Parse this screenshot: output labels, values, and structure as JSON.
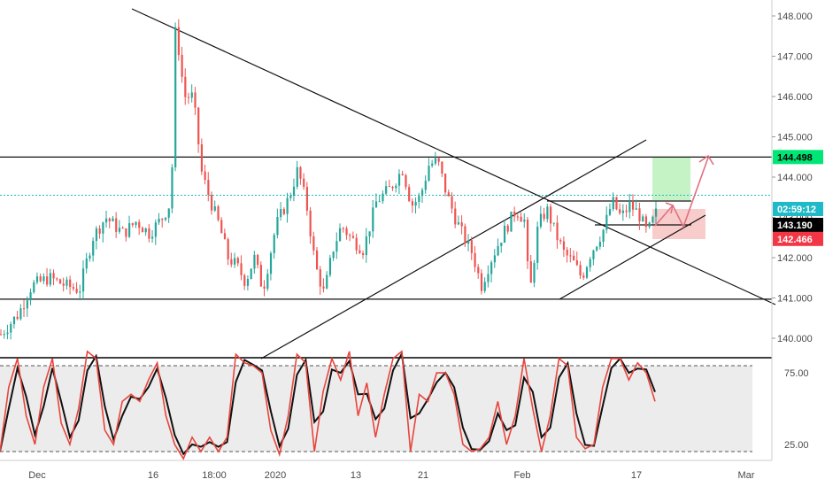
{
  "chart_data": [
    {
      "type": "candlestick",
      "x_ticks": [
        "Dec",
        "16",
        "18:00",
        "2020",
        "13",
        "21",
        "Feb",
        "17",
        "Mar"
      ],
      "y_ticks": [
        "148.000",
        "147.000",
        "146.000",
        "145.000",
        "144.000",
        "143.000",
        "142.000",
        "141.000",
        "140.000"
      ],
      "ylim": [
        139.55,
        148.4
      ],
      "price_tags": [
        {
          "label": "144.498",
          "value": 144.498,
          "bg": "#00e676",
          "fg": "#000000"
        },
        {
          "label": "02:59:12",
          "value": 143.55,
          "bg": "#1fbac8",
          "fg": "#ffffff"
        },
        {
          "label": "143.190",
          "value": 143.19,
          "bg": "#000000",
          "fg": "#ffffff"
        },
        {
          "label": "142.466",
          "value": 142.466,
          "bg": "#f23645",
          "fg": "#ffffff"
        }
      ],
      "horizontal_levels": [
        144.498,
        140.97
      ],
      "current_price_line": 143.55,
      "bar_count": 200,
      "approx_path": [
        [
          0,
          140.1
        ],
        [
          8,
          140.6
        ],
        [
          14,
          141.3
        ],
        [
          22,
          141.5
        ],
        [
          30,
          141.3
        ],
        [
          36,
          141.2
        ],
        [
          42,
          142.5
        ],
        [
          48,
          143.0
        ],
        [
          56,
          142.6
        ],
        [
          62,
          142.9
        ],
        [
          68,
          142.6
        ],
        [
          74,
          143.0
        ],
        [
          78,
          143.4
        ],
        [
          80,
          147.8
        ],
        [
          82,
          146.9
        ],
        [
          84,
          146.0
        ],
        [
          88,
          146.0
        ],
        [
          92,
          144.1
        ],
        [
          96,
          143.4
        ],
        [
          100,
          142.8
        ],
        [
          104,
          142.0
        ],
        [
          108,
          141.8
        ],
        [
          112,
          141.4
        ],
        [
          116,
          142.0
        ],
        [
          120,
          141.2
        ],
        [
          126,
          142.8
        ],
        [
          132,
          143.5
        ],
        [
          136,
          144.2
        ],
        [
          140,
          143.3
        ],
        [
          144,
          141.8
        ],
        [
          148,
          141.1
        ],
        [
          152,
          142.2
        ],
        [
          156,
          142.8
        ],
        [
          160,
          142.5
        ],
        [
          166,
          142.2
        ],
        [
          172,
          143.4
        ],
        [
          178,
          143.7
        ],
        [
          184,
          144.2
        ],
        [
          188,
          143.3
        ],
        [
          192,
          143.5
        ],
        [
          196,
          144.3
        ],
        [
          200,
          144.4
        ],
        [
          204,
          143.6
        ],
        [
          208,
          143.0
        ],
        [
          212,
          142.5
        ],
        [
          216,
          142.1
        ],
        [
          220,
          141.3
        ],
        [
          224,
          141.9
        ],
        [
          230,
          142.6
        ],
        [
          236,
          143.2
        ],
        [
          240,
          142.9
        ],
        [
          242,
          141.0
        ],
        [
          246,
          142.8
        ],
        [
          250,
          143.2
        ],
        [
          254,
          142.6
        ],
        [
          258,
          142.1
        ],
        [
          262,
          141.9
        ],
        [
          266,
          141.5
        ],
        [
          270,
          142.1
        ],
        [
          276,
          142.7
        ],
        [
          280,
          143.4
        ],
        [
          284,
          143.0
        ],
        [
          288,
          143.3
        ],
        [
          292,
          143.1
        ],
        [
          296,
          142.6
        ],
        [
          300,
          143.1
        ]
      ],
      "approx_path_x_unit": "chart-relative bar index (0 = first visible bar, 300 = last visible bar)",
      "stochastic": {
        "y_ticks": [
          "75.00",
          "25.00"
        ],
        "bands": [
          80,
          20
        ],
        "ylim": [
          0,
          100
        ],
        "k": [
          [
            0,
            20
          ],
          [
            4,
            65
          ],
          [
            8,
            85
          ],
          [
            12,
            45
          ],
          [
            16,
            25
          ],
          [
            20,
            65
          ],
          [
            24,
            85
          ],
          [
            28,
            40
          ],
          [
            32,
            25
          ],
          [
            36,
            50
          ],
          [
            40,
            90
          ],
          [
            44,
            85
          ],
          [
            48,
            35
          ],
          [
            52,
            25
          ],
          [
            56,
            55
          ],
          [
            60,
            60
          ],
          [
            64,
            55
          ],
          [
            68,
            70
          ],
          [
            72,
            82
          ],
          [
            76,
            45
          ],
          [
            80,
            25
          ],
          [
            84,
            15
          ],
          [
            88,
            30
          ],
          [
            92,
            20
          ],
          [
            96,
            30
          ],
          [
            100,
            20
          ],
          [
            104,
            30
          ],
          [
            108,
            88
          ],
          [
            112,
            82
          ],
          [
            116,
            80
          ],
          [
            120,
            75
          ],
          [
            124,
            35
          ],
          [
            128,
            18
          ],
          [
            132,
            45
          ],
          [
            136,
            88
          ],
          [
            140,
            82
          ],
          [
            144,
            20
          ],
          [
            148,
            62
          ],
          [
            152,
            85
          ],
          [
            156,
            70
          ],
          [
            160,
            90
          ],
          [
            164,
            45
          ],
          [
            168,
            68
          ],
          [
            172,
            30
          ],
          [
            176,
            60
          ],
          [
            180,
            85
          ],
          [
            184,
            90
          ],
          [
            188,
            20
          ],
          [
            192,
            60
          ],
          [
            196,
            55
          ],
          [
            200,
            75
          ],
          [
            204,
            75
          ],
          [
            208,
            60
          ],
          [
            212,
            25
          ],
          [
            216,
            20
          ],
          [
            220,
            22
          ],
          [
            224,
            30
          ],
          [
            228,
            55
          ],
          [
            232,
            25
          ],
          [
            236,
            45
          ],
          [
            240,
            85
          ],
          [
            244,
            50
          ],
          [
            248,
            20
          ],
          [
            252,
            45
          ],
          [
            256,
            85
          ],
          [
            260,
            80
          ],
          [
            264,
            30
          ],
          [
            268,
            22
          ],
          [
            272,
            25
          ],
          [
            276,
            65
          ],
          [
            280,
            85
          ],
          [
            284,
            85
          ],
          [
            288,
            70
          ],
          [
            292,
            82
          ],
          [
            296,
            75
          ],
          [
            300,
            55
          ]
        ]
      },
      "colors": {
        "up": "#26a69a",
        "down": "#ef5350",
        "trendline": "#000000",
        "current_line": "#1fbac8",
        "target_zone": "#b8f0b8",
        "stop_zone": "#f8c6c6",
        "projection": "#e07080"
      }
    }
  ]
}
